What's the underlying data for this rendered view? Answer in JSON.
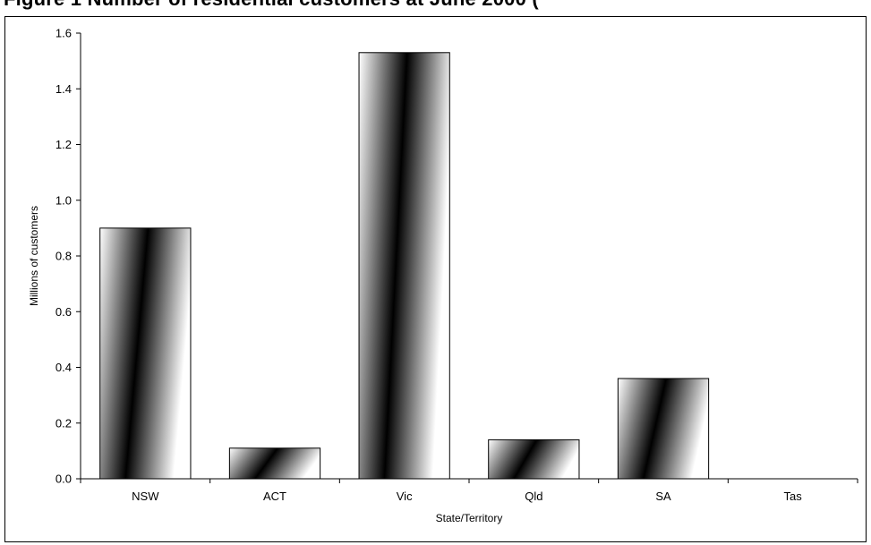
{
  "page": {
    "title": "Figure 1  Number of residential customers at June 2000 ("
  },
  "chart_data": {
    "type": "bar",
    "categories": [
      "NSW",
      "ACT",
      "Vic",
      "Qld",
      "SA",
      "Tas"
    ],
    "values": [
      0.9,
      0.11,
      1.53,
      0.14,
      0.36,
      0.0
    ],
    "xlabel": "State/Territory",
    "ylabel": "Millions of customers",
    "ylim": [
      0,
      1.6
    ],
    "yticks": [
      "0.0",
      "0.2",
      "0.4",
      "0.6",
      "0.8",
      "1.0",
      "1.2",
      "1.4",
      "1.6"
    ],
    "grid": false,
    "legend": "none",
    "colors": {
      "bar_dark": "#000000",
      "bar_light": "#ffffff",
      "axis": "#000000"
    }
  }
}
